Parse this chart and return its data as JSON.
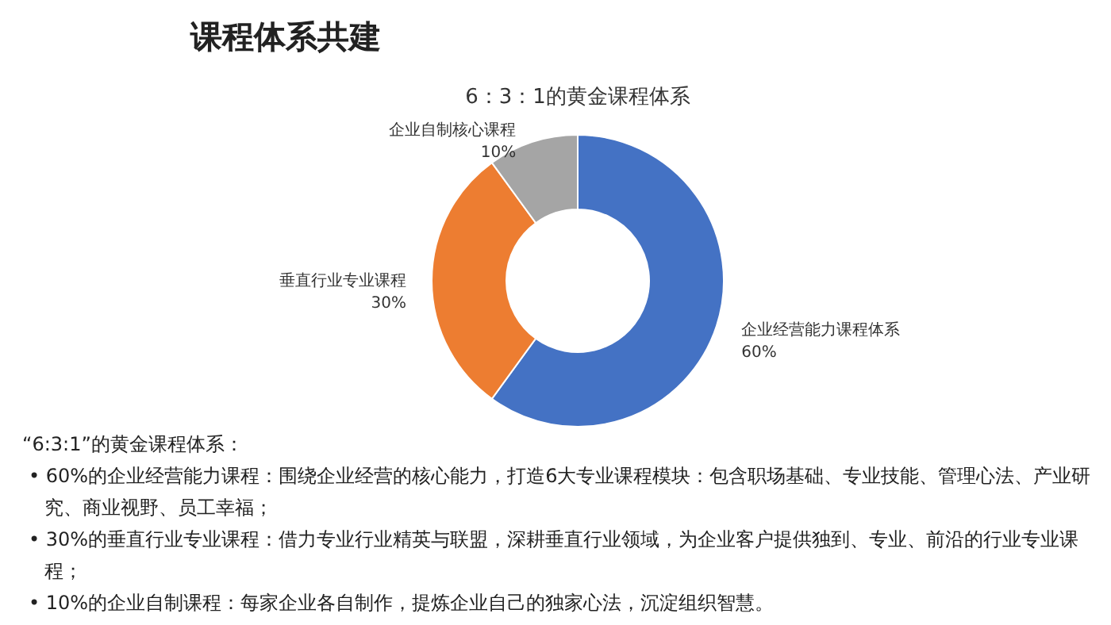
{
  "chart_data": {
    "type": "donut",
    "title": "课程体系共建",
    "subtitle": "6：3：1的黄金课程体系",
    "categories": [
      "企业经营能力课程体系",
      "垂直行业专业课程",
      "企业自制核心课程"
    ],
    "values": [
      60,
      30,
      10
    ],
    "colors": [
      "#4472c4",
      "#ed7d31",
      "#a5a5a5"
    ],
    "value_labels": [
      "60%",
      "30%",
      "10%"
    ],
    "legend": false,
    "annotations": [
      "“6:3:1”的黄金课程体系：",
      "• 60%的企业经营能力课程：围绕企业经营的核心能力，打造6大专业课程模块：包含职场基础、专业技能、管理心法、产业研究、商业视野、员工幸福；",
      "• 30%的垂直行业专业课程：借力专业行业精英与联盟，深耕垂直行业领域，为企业客户提供独到、专业、前沿的行业专业课程；",
      "• 10%的企业自制课程：每家企业各自制作，提炼企业自己的独家心法，沉淀组织智慧。"
    ]
  }
}
